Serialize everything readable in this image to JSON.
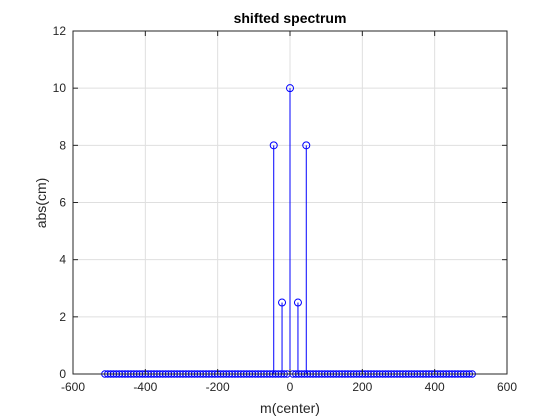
{
  "chart_data": {
    "type": "stem",
    "title": "shifted spectrum",
    "xlabel": "m(center)",
    "ylabel": "abs(cm)",
    "xlim": [
      -600,
      600
    ],
    "ylim": [
      0,
      12
    ],
    "xticks": [
      -600,
      -400,
      -200,
      0,
      200,
      400,
      600
    ],
    "yticks": [
      0,
      2,
      4,
      6,
      8,
      10,
      12
    ],
    "grid": true,
    "baseline_range": [
      -512,
      511
    ],
    "baseline_step": 8,
    "nonzero_points": [
      {
        "x": -45,
        "y": 8
      },
      {
        "x": -22,
        "y": 2.5
      },
      {
        "x": 0,
        "y": 10
      },
      {
        "x": 22,
        "y": 2.5
      },
      {
        "x": 45,
        "y": 8
      }
    ],
    "colors": {
      "stem": "#0000ff",
      "baseline": "#000000",
      "grid": "#dfdfdf",
      "axes": "#262626"
    }
  }
}
